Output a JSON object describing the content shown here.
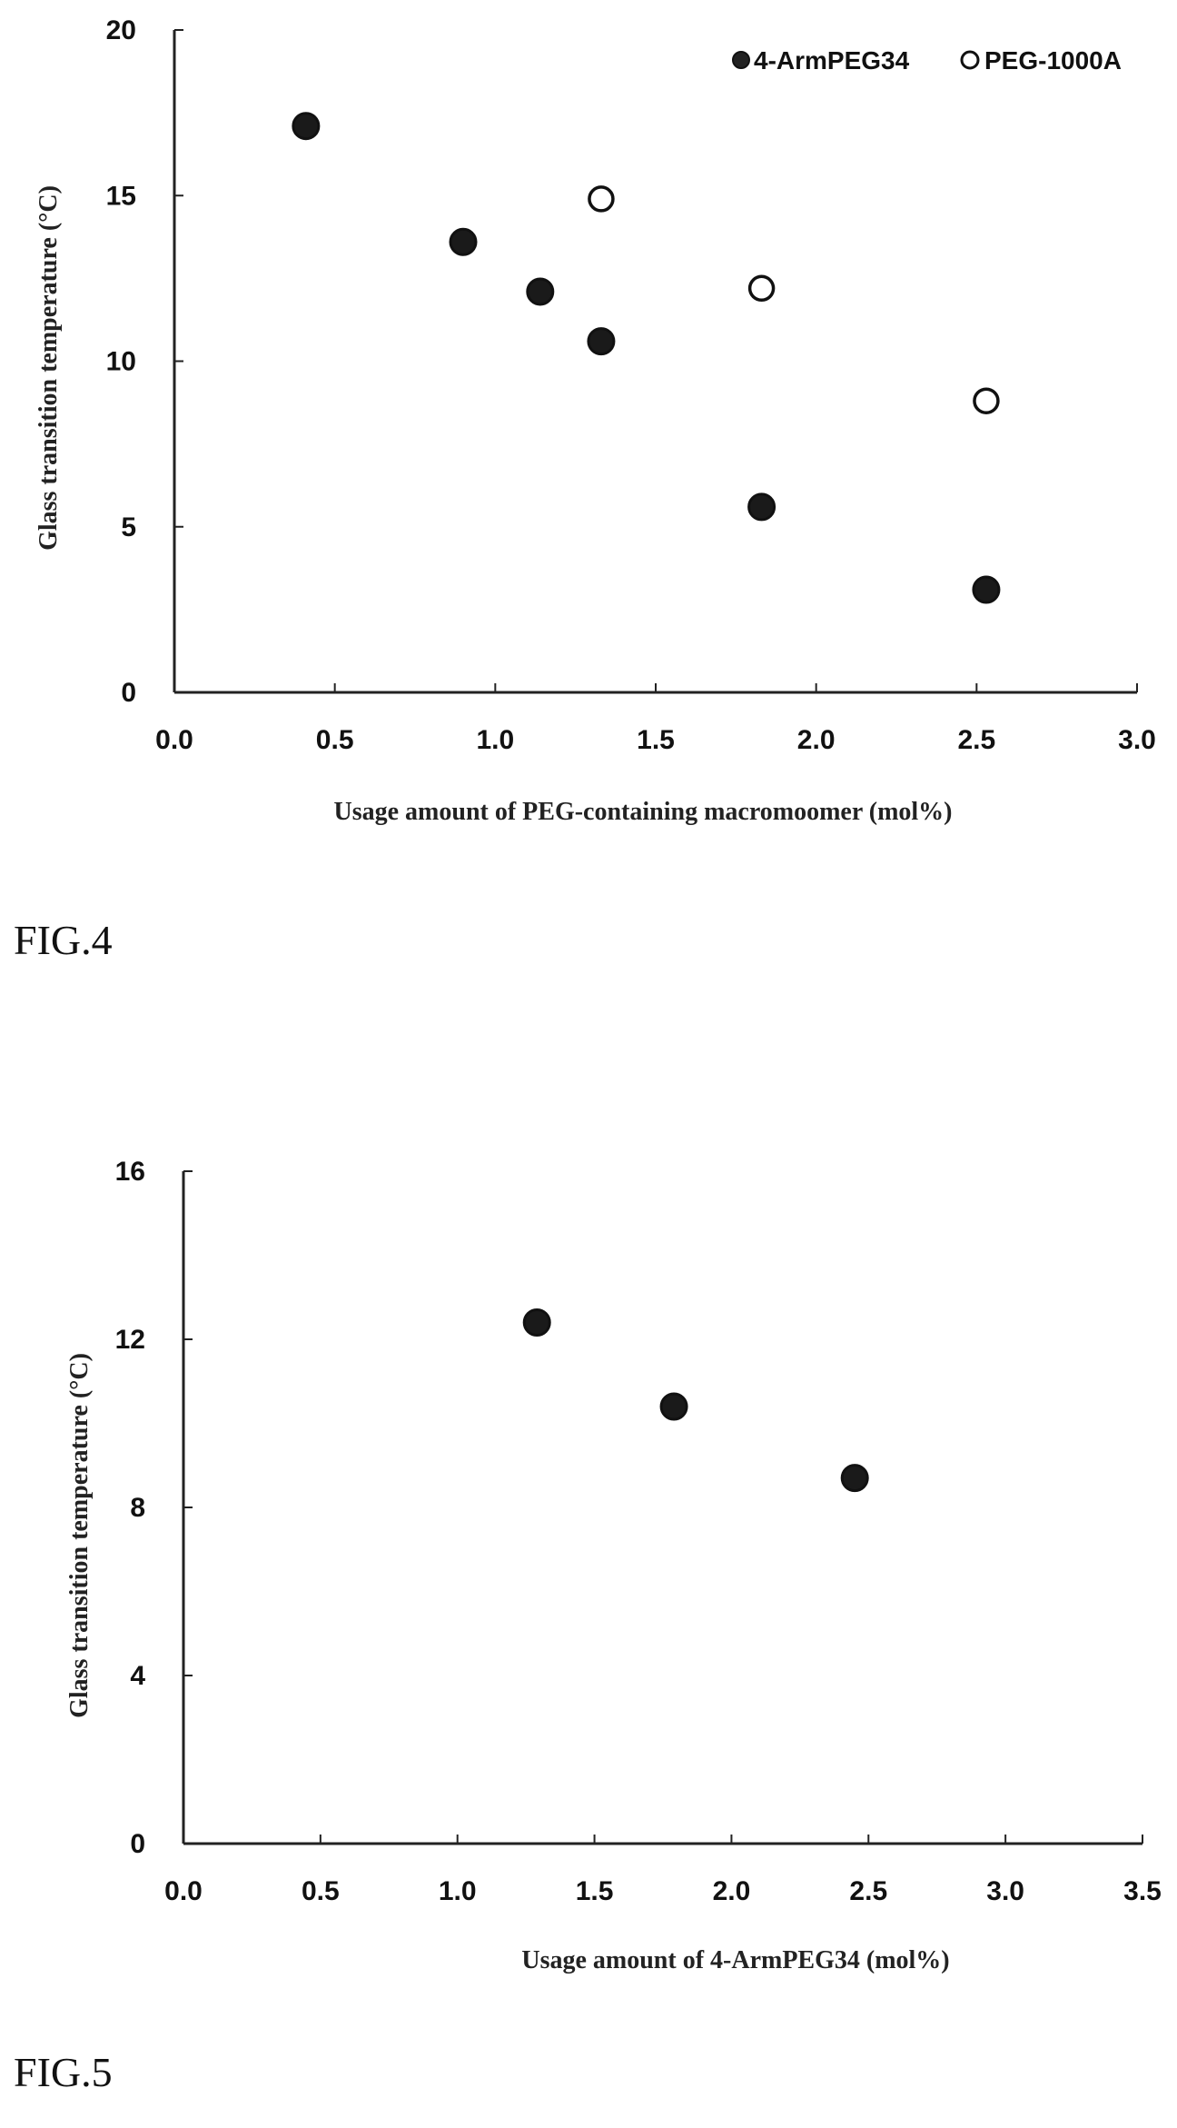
{
  "chart_data": [
    {
      "type": "scatter",
      "figure_label": "FIG.4",
      "xlabel": "Usage amount of PEG-containing macromoomer (mol%)",
      "ylabel": "Glass transition temperature (°C)",
      "xlim": [
        0.0,
        3.0
      ],
      "ylim": [
        0,
        20
      ],
      "xticks": [
        "0.0",
        "0.5",
        "1.0",
        "1.5",
        "2.0",
        "2.5",
        "3.0"
      ],
      "yticks": [
        "0",
        "5",
        "10",
        "15",
        "20"
      ],
      "legend_position": "top-right",
      "grid": false,
      "series": [
        {
          "name": "4-ArmPEG34",
          "marker": "filled-circle",
          "x": [
            0.41,
            0.9,
            1.14,
            1.33,
            1.83,
            2.53
          ],
          "y": [
            17.1,
            13.6,
            12.1,
            10.6,
            5.6,
            3.1
          ]
        },
        {
          "name": "PEG-1000A",
          "marker": "open-circle",
          "x": [
            1.33,
            1.83,
            2.53
          ],
          "y": [
            14.9,
            12.2,
            8.8
          ]
        }
      ]
    },
    {
      "type": "scatter",
      "figure_label": "FIG.5",
      "xlabel": "Usage amount of 4-ArmPEG34 (mol%)",
      "ylabel": "Glass transition temperature (°C)",
      "xlim": [
        0.0,
        3.5
      ],
      "ylim": [
        0,
        16
      ],
      "xticks": [
        "0.0",
        "0.5",
        "1.0",
        "1.5",
        "2.0",
        "2.5",
        "3.0",
        "3.5"
      ],
      "yticks": [
        "0",
        "4",
        "8",
        "12",
        "16"
      ],
      "grid": false,
      "series": [
        {
          "marker": "filled-circle",
          "x": [
            1.29,
            1.79,
            2.45
          ],
          "y": [
            12.4,
            10.4,
            8.7
          ]
        }
      ]
    }
  ]
}
